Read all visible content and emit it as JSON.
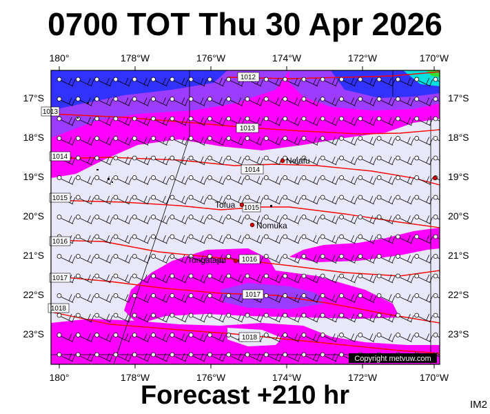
{
  "title": "0700 TOT Thu 30 Apr 2026",
  "footer": "Forecast +210 hr",
  "image_code": "IM2",
  "copyright": "Copyright metvuw.com",
  "axes": {
    "lon_labels": [
      "180°",
      "178°W",
      "176°W",
      "174°W",
      "172°W",
      "170°W"
    ],
    "lat_labels": [
      "17°S",
      "18°S",
      "19°S",
      "20°S",
      "21°S",
      "22°S",
      "23°S"
    ]
  },
  "isobars": [
    {
      "label": "1012",
      "color": "#ff0000"
    },
    {
      "label": "1013",
      "color": "#ff0000"
    },
    {
      "label": "1014",
      "color": "#ff0000"
    },
    {
      "label": "1015",
      "color": "#ff0000"
    },
    {
      "label": "1016",
      "color": "#ff0000"
    },
    {
      "label": "1017",
      "color": "#ff0000"
    },
    {
      "label": "1018",
      "color": "#ff0000"
    }
  ],
  "places": [
    {
      "name": "Neiafu",
      "color": "#cc0000"
    },
    {
      "name": "Tofua",
      "color": "#cc0000"
    },
    {
      "name": "Nomuka",
      "color": "#cc0000"
    },
    {
      "name": "Tongatapu",
      "color": "#cc0000"
    }
  ],
  "colors": {
    "calm": "#e8e8fa",
    "magenta": "#ff00ff",
    "violet": "#9b3cff",
    "blue": "#3232ff",
    "isobar": "#ff0000"
  }
}
